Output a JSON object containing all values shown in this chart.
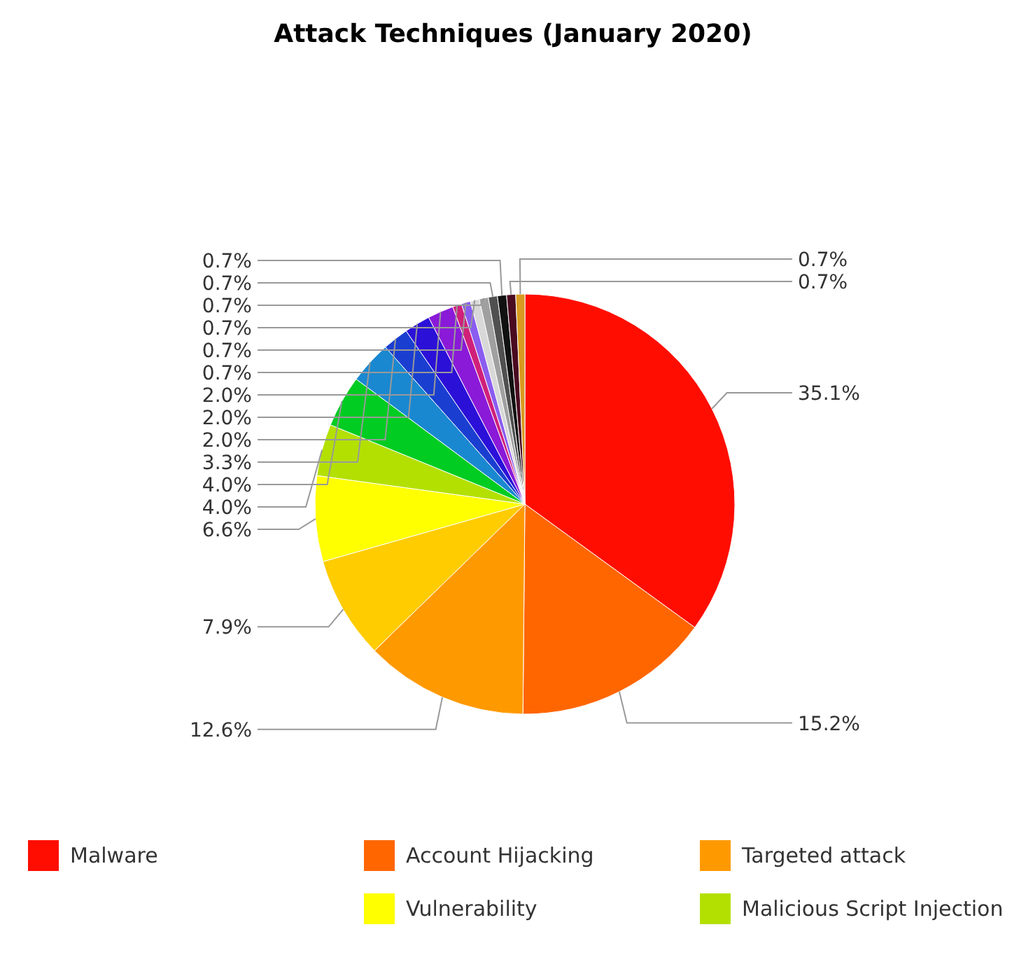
{
  "chart_data": {
    "type": "pie",
    "title": "Attack Techniques (January 2020)",
    "categories": [
      "Malware",
      "Account Hijacking",
      "Targeted attack",
      null,
      "Vulnerability",
      "Malicious Script Injection",
      null,
      null,
      null,
      null,
      null,
      null,
      null,
      null,
      null,
      null,
      null,
      null,
      null
    ],
    "values": [
      35.1,
      15.2,
      12.6,
      7.9,
      6.6,
      4.0,
      4.0,
      3.3,
      2.0,
      2.0,
      2.0,
      0.7,
      0.7,
      0.7,
      0.7,
      0.7,
      0.7,
      0.7,
      0.7
    ],
    "colors": [
      "#ff0d00",
      "#ff6600",
      "#ff9900",
      "#ffcc00",
      "#ffff00",
      "#b3e000",
      "#00cc22",
      "#1a88d0",
      "#1a3fd0",
      "#2b10d8",
      "#8a1ad8",
      "#d0207a",
      "#8a5cf0",
      "#d8d8d8",
      "#a0a0a0",
      "#505050",
      "#111111",
      "#4a0a20",
      "#d89a20"
    ],
    "value_labels": [
      "35.1%",
      "15.2%",
      "12.6%",
      "7.9%",
      "6.6%",
      "4.0%",
      "4.0%",
      "3.3%",
      "2.0%",
      "2.0%",
      "2.0%",
      "0.7%",
      "0.7%",
      "0.7%",
      "0.7%",
      "0.7%",
      "0.7%",
      "0.7%",
      "0.7%"
    ],
    "legend": "bottom"
  }
}
